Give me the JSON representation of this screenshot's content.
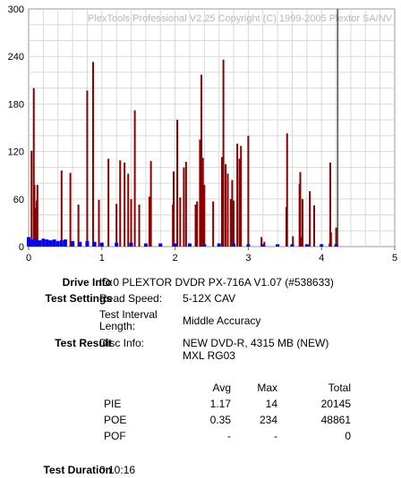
{
  "chart_data": {
    "type": "bar",
    "title": "PlexTools Professional V2.25 Copyright (C) 1999-2005 Plextor SA/NV",
    "xlabel": "",
    "ylabel": "",
    "xlim": [
      0,
      5
    ],
    "ylim": [
      0,
      300
    ],
    "x_ticks": [
      "0",
      "1",
      "2",
      "3",
      "4",
      "5"
    ],
    "y_ticks": [
      "0",
      "60",
      "120",
      "180",
      "240",
      "300"
    ],
    "grid": true,
    "end_marker_x": 4.22,
    "series": [
      {
        "color": "#8b0000",
        "x": [
          0.04,
          0.07,
          0.08,
          0.1,
          0.11,
          0.12,
          0.45,
          0.57,
          0.68,
          0.8,
          0.88,
          0.96,
          1.09,
          1.2,
          1.25,
          1.31,
          1.36,
          1.4,
          1.45,
          1.51,
          1.65,
          1.67,
          1.97,
          1.98,
          2.03,
          2.07,
          2.12,
          2.15,
          2.28,
          2.3,
          2.34,
          2.36,
          2.38,
          2.4,
          2.52,
          2.64,
          2.66,
          2.69,
          2.72,
          2.76,
          2.78,
          2.8,
          2.85,
          2.88,
          2.9,
          3.0,
          3.18,
          3.22,
          3.52,
          3.53,
          3.61,
          3.7,
          3.71,
          3.73,
          3.74,
          3.84,
          3.9,
          4.11,
          4.12,
          4.13,
          4.2
        ],
        "values": [
          121,
          200,
          78,
          49,
          58,
          78,
          96,
          93,
          53,
          197,
          233,
          59,
          111,
          54,
          109,
          106,
          92,
          60,
          172,
          53,
          63,
          108,
          53,
          95,
          160,
          62,
          100,
          107,
          53,
          57,
          135,
          217,
          112,
          78,
          57,
          113,
          236,
          104,
          92,
          60,
          84,
          58,
          130,
          111,
          127,
          140,
          12,
          6,
          50,
          143,
          13,
          79,
          94,
          12,
          60,
          70,
          52,
          4,
          106,
          18,
          24
        ]
      },
      {
        "color": "#0000ff",
        "x": [
          0.0,
          0.05,
          0.1,
          0.15,
          0.2,
          0.25,
          0.3,
          0.35,
          0.4,
          0.45,
          0.5,
          0.6,
          0.7,
          0.8,
          0.9,
          1.0,
          1.2,
          1.4,
          1.6,
          1.8,
          2.0,
          2.2,
          2.4,
          2.6,
          2.8,
          3.0,
          3.2,
          3.4,
          3.6,
          3.8,
          4.0,
          4.2
        ],
        "values": [
          12,
          9,
          10,
          8,
          10,
          9,
          8,
          9,
          7,
          8,
          9,
          7,
          6,
          7,
          6,
          5,
          5,
          5,
          4,
          4,
          4,
          4,
          3,
          4,
          4,
          3,
          3,
          3,
          3,
          3,
          3,
          3
        ]
      }
    ]
  },
  "info": {
    "drive_label": "Drive Info",
    "drive_value": "ID:0 PLEXTOR DVDR PX-716A V1.07 (#538633)",
    "settings_label": "Test Settings",
    "read_speed_label": "Read Speed:",
    "read_speed_value": "5-12X CAV",
    "interval_label_1": "Test Interval",
    "interval_label_2": "Length:",
    "interval_value": "Middle Accuracy",
    "result_label": "Test Result",
    "disc_label": "Disc Info:",
    "disc_value_1": "NEW DVD-R, 4315 MB (NEW)",
    "disc_value_2": "MXL RG03",
    "duration_label": "Test Duration",
    "duration_value": "0:10:16"
  },
  "stats": {
    "headers": {
      "avg": "Avg",
      "max": "Max",
      "total": "Total"
    },
    "rows": [
      {
        "name": "PIE",
        "avg": "1.17",
        "max": "14",
        "total": "20145"
      },
      {
        "name": "POE",
        "avg": "0.35",
        "max": "234",
        "total": "48861"
      },
      {
        "name": "POF",
        "avg": "-",
        "max": "-",
        "total": "0"
      }
    ]
  }
}
